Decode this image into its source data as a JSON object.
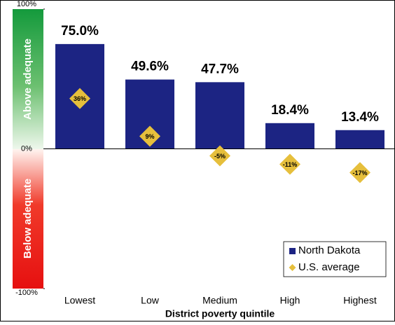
{
  "chart_data": {
    "type": "bar",
    "categories": [
      "Lowest",
      "Low",
      "Medium",
      "High",
      "Highest"
    ],
    "x_label": "District poverty quintile",
    "zone_labels": [
      "Above adequate",
      "Below adequate"
    ],
    "series": [
      {
        "name": "North Dakota",
        "type": "bar",
        "color": "#1c2483",
        "values": [
          75.0,
          49.6,
          47.7,
          18.4,
          13.4
        ],
        "value_labels": [
          "75.0%",
          "49.6%",
          "47.7%",
          "18.4%",
          "13.4%"
        ]
      },
      {
        "name": "U.S. average",
        "type": "diamond",
        "color": "#e6bf3c",
        "values": [
          36,
          9,
          -5,
          -11,
          -17
        ],
        "value_labels": [
          "36%",
          "9%",
          "-5%",
          "-11%",
          "-17%"
        ]
      }
    ],
    "ylim": [
      -100,
      100
    ],
    "yticks": [
      {
        "value": 100,
        "label": "100%"
      },
      {
        "value": 0,
        "label": "0%"
      },
      {
        "value": -100,
        "label": "-100%"
      }
    ],
    "legend": "lower right"
  }
}
